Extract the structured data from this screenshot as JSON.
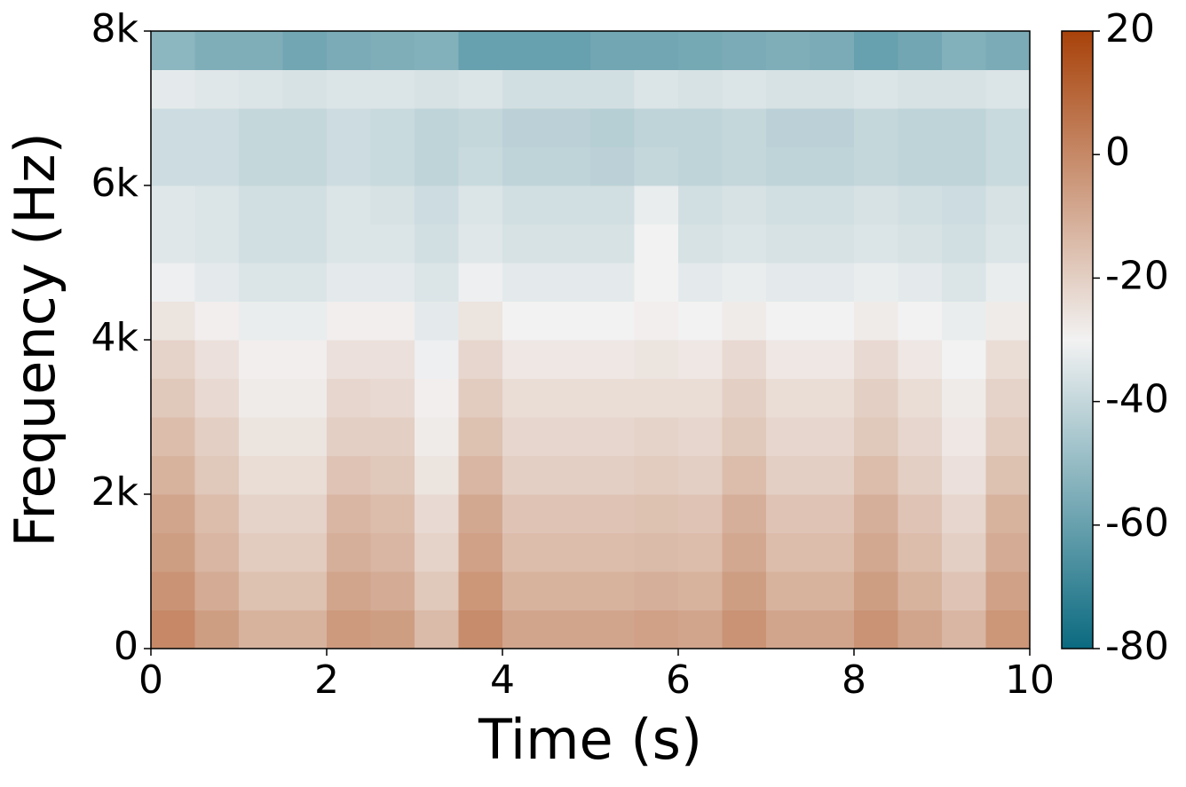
{
  "chart_data": {
    "type": "heatmap",
    "xlabel": "Time (s)",
    "ylabel": "Frequency (Hz)",
    "xlim": [
      0,
      10
    ],
    "xticks": [
      0,
      2,
      4,
      6,
      8,
      10
    ],
    "ylim": [
      0,
      8000
    ],
    "yticks": [
      0,
      {
        "value": 2000,
        "label": "2k"
      },
      {
        "value": 4000,
        "label": "4k"
      },
      {
        "value": 6000,
        "label": "6k"
      },
      {
        "value": 8000,
        "label": "8k"
      }
    ],
    "clim": [
      -80,
      20
    ],
    "cticks": [
      -80,
      -60,
      -40,
      -20,
      0,
      20
    ],
    "colormap": [
      "#0b6a80",
      "#f2f2f2",
      "#a8420a"
    ],
    "z": [
      [
        0,
        -6,
        -12,
        -12,
        -5,
        -6,
        -14,
        -1,
        -8,
        -8,
        -8,
        -7,
        -8,
        -3,
        -8,
        -8,
        -3,
        -8,
        -13,
        -4
      ],
      [
        -3,
        -10,
        -16,
        -16,
        -8,
        -10,
        -18,
        -4,
        -12,
        -12,
        -12,
        -11,
        -12,
        -6,
        -12,
        -12,
        -6,
        -12,
        -17,
        -7
      ],
      [
        -6,
        -13,
        -19,
        -19,
        -11,
        -13,
        -21,
        -7,
        -15,
        -15,
        -15,
        -14,
        -15,
        -9,
        -15,
        -15,
        -9,
        -15,
        -20,
        -10
      ],
      [
        -8,
        -15,
        -21,
        -21,
        -13,
        -15,
        -23,
        -9,
        -17,
        -17,
        -17,
        -16,
        -17,
        -11,
        -17,
        -17,
        -11,
        -17,
        -22,
        -12
      ],
      [
        -12,
        -18,
        -24,
        -24,
        -17,
        -18,
        -26,
        -13,
        -20,
        -20,
        -20,
        -19,
        -20,
        -15,
        -20,
        -20,
        -15,
        -20,
        -25,
        -16
      ],
      [
        -15,
        -20,
        -26,
        -26,
        -20,
        -20,
        -28,
        -16,
        -22,
        -22,
        -22,
        -21,
        -22,
        -18,
        -22,
        -22,
        -18,
        -22,
        -27,
        -19
      ],
      [
        -18,
        -23,
        -28,
        -28,
        -22,
        -23,
        -29,
        -19,
        -24,
        -24,
        -24,
        -24,
        -24,
        -20,
        -24,
        -24,
        -20,
        -24,
        -28,
        -21
      ],
      [
        -21,
        -25,
        -29,
        -29,
        -25,
        -25,
        -31,
        -22,
        -27,
        -27,
        -27,
        -26,
        -27,
        -23,
        -27,
        -27,
        -23,
        -27,
        -30,
        -24
      ],
      [
        -26,
        -29,
        -32,
        -32,
        -29,
        -29,
        -33,
        -26,
        -30,
        -30,
        -30,
        -29,
        -30,
        -28,
        -30,
        -30,
        -28,
        -30,
        -32,
        -28
      ],
      [
        -31,
        -33,
        -35,
        -35,
        -33,
        -33,
        -35,
        -31,
        -33,
        -33,
        -33,
        -30,
        -33,
        -32,
        -33,
        -33,
        -32,
        -33,
        -35,
        -32
      ],
      [
        -34,
        -35,
        -37,
        -37,
        -35,
        -35,
        -37,
        -34,
        -36,
        -36,
        -36,
        -30,
        -36,
        -35,
        -36,
        -36,
        -35,
        -36,
        -37,
        -35
      ],
      [
        -34,
        -35,
        -37,
        -37,
        -35,
        -36,
        -38,
        -35,
        -37,
        -37,
        -37,
        -32,
        -37,
        -36,
        -37,
        -37,
        -36,
        -37,
        -38,
        -36
      ],
      [
        -38,
        -38,
        -40,
        -40,
        -38,
        -39,
        -41,
        -39,
        -41,
        -41,
        -42,
        -40,
        -41,
        -40,
        -41,
        -41,
        -40,
        -41,
        -41,
        -39
      ],
      [
        -38,
        -38,
        -40,
        -40,
        -38,
        -39,
        -41,
        -40,
        -42,
        -42,
        -43,
        -41,
        -41,
        -40,
        -42,
        -42,
        -40,
        -41,
        -41,
        -39
      ],
      [
        -33,
        -34,
        -35,
        -36,
        -35,
        -35,
        -36,
        -35,
        -37,
        -37,
        -37,
        -35,
        -36,
        -35,
        -36,
        -36,
        -35,
        -36,
        -36,
        -35
      ],
      [
        -52,
        -55,
        -55,
        -58,
        -56,
        -55,
        -54,
        -60,
        -60,
        -60,
        -58,
        -58,
        -57,
        -56,
        -55,
        -56,
        -60,
        -58,
        -54,
        -56
      ]
    ]
  }
}
